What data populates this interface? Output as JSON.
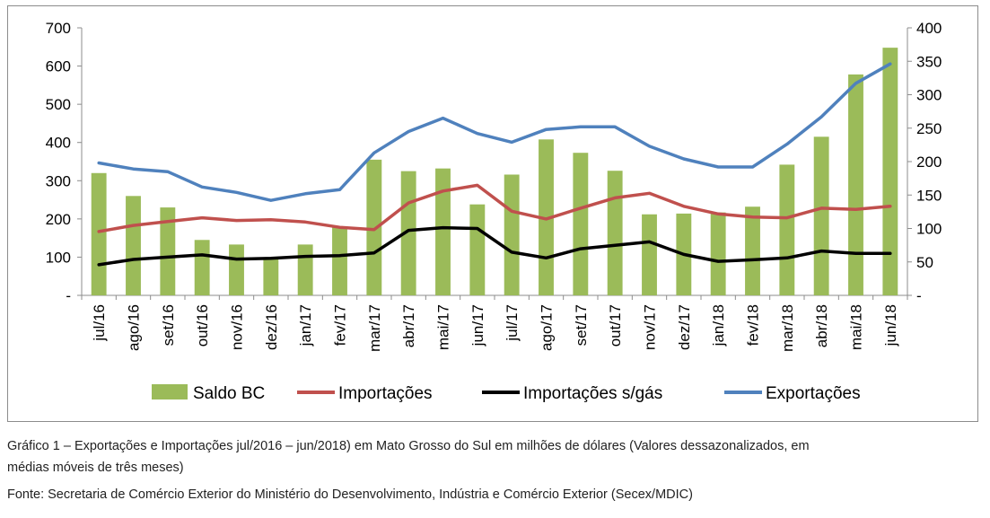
{
  "caption": {
    "line1": "Gráfico 1 – Exportações e Importações jul/2016 – jun/2018) em Mato Grosso do Sul em milhões de dólares (Valores dessazonalizados, em",
    "line2": "médias móveis de três meses)",
    "source": "Fonte: Secretaria de Comércio Exterior do Ministério do Desenvolvimento, Indústria e Comércio Exterior (Secex/MDIC)"
  },
  "chart_data": {
    "type": "bar",
    "categories": [
      "jul/16",
      "ago/16",
      "set/16",
      "out/16",
      "nov/16",
      "dez/16",
      "jan/17",
      "fev/17",
      "mar/17",
      "abr/17",
      "mai/17",
      "jun/17",
      "jul/17",
      "ago/17",
      "set/17",
      "out/17",
      "nov/17",
      "dez/17",
      "jan/18",
      "fev/18",
      "mar/18",
      "abr/18",
      "mai/18",
      "jun/18"
    ],
    "left_axis": {
      "ylim": [
        0,
        700
      ],
      "ticks": [
        "-",
        "100",
        "200",
        "300",
        "400",
        "500",
        "600",
        "700"
      ]
    },
    "right_axis": {
      "ylim": [
        0,
        400
      ],
      "ticks": [
        "-",
        "50",
        "100",
        "150",
        "200",
        "250",
        "300",
        "350",
        "400"
      ]
    },
    "grid": false,
    "legend_position": "bottom",
    "series": [
      {
        "name": "Saldo BC",
        "kind": "bar",
        "axis": "left",
        "color": "#9bbb59",
        "values": [
          320,
          260,
          230,
          145,
          133,
          95,
          133,
          180,
          355,
          325,
          332,
          238,
          316,
          408,
          373,
          326,
          212,
          214,
          217,
          232,
          342,
          415,
          578,
          648
        ]
      },
      {
        "name": "Importações",
        "kind": "line",
        "axis": "left",
        "color": "#c0504d",
        "values": [
          167,
          183,
          193,
          203,
          196,
          198,
          192,
          178,
          172,
          242,
          273,
          288,
          220,
          200,
          228,
          255,
          267,
          233,
          213,
          205,
          203,
          228,
          225,
          233
        ]
      },
      {
        "name": "Importações s/gás",
        "kind": "line",
        "axis": "left",
        "color": "#000000",
        "values": [
          80,
          94,
          100,
          106,
          95,
          97,
          102,
          104,
          111,
          170,
          177,
          175,
          113,
          98,
          122,
          131,
          140,
          107,
          89,
          93,
          98,
          116,
          110,
          110
        ]
      },
      {
        "name": "Exportações",
        "kind": "line",
        "axis": "right",
        "color": "#4f81bd",
        "values": [
          198,
          189,
          185,
          162,
          154,
          142,
          152,
          158,
          213,
          245,
          265,
          242,
          229,
          248,
          252,
          252,
          223,
          204,
          192,
          192,
          226,
          267,
          317,
          346
        ]
      }
    ]
  }
}
